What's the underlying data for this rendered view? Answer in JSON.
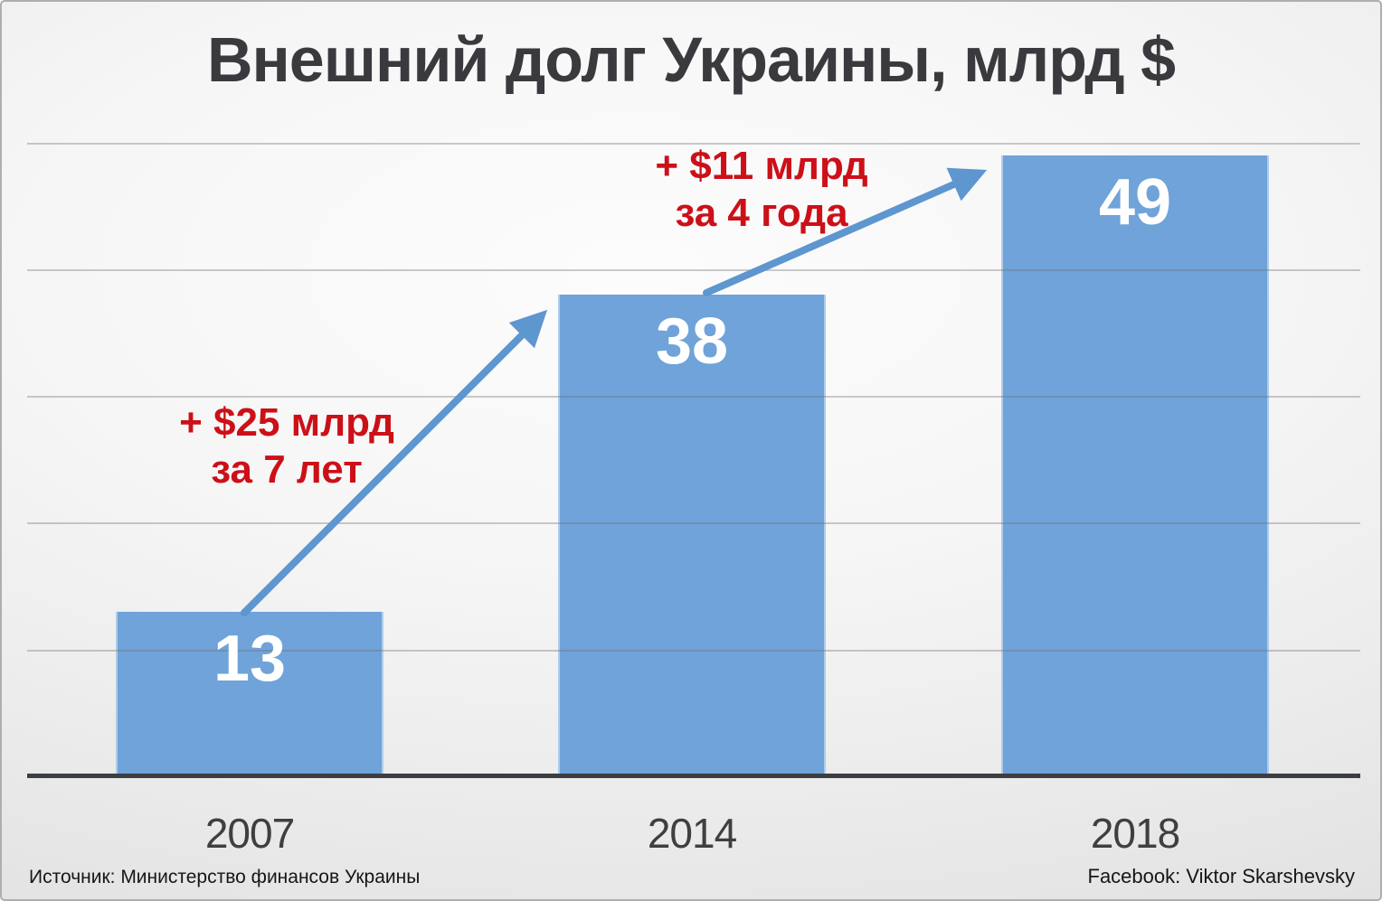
{
  "chart_data": {
    "type": "bar",
    "title": "Внешний долг Украины, млрд $",
    "categories": [
      "2007",
      "2014",
      "2018"
    ],
    "values": [
      13,
      38,
      49
    ],
    "xlabel": "",
    "ylabel": "",
    "ylim": [
      0,
      55
    ],
    "gridline_values": [
      10,
      20,
      30,
      40,
      50
    ],
    "grid": "horizontal",
    "legend_position": "none",
    "bar_color": "#6FA3D9",
    "arrow_color": "#5E96CF",
    "annotation_color": "#CC1018",
    "annotations": [
      {
        "line1": "+ $25 млрд",
        "line2": "за 7 лет",
        "from_category": "2007",
        "to_category": "2014"
      },
      {
        "line1": "+ $11 млрд",
        "line2": "за 4 года",
        "from_category": "2014",
        "to_category": "2018"
      }
    ]
  },
  "footer": {
    "source": "Источник: Министерство финансов Украины",
    "credit": "Facebook: Viktor Skarshevsky"
  }
}
